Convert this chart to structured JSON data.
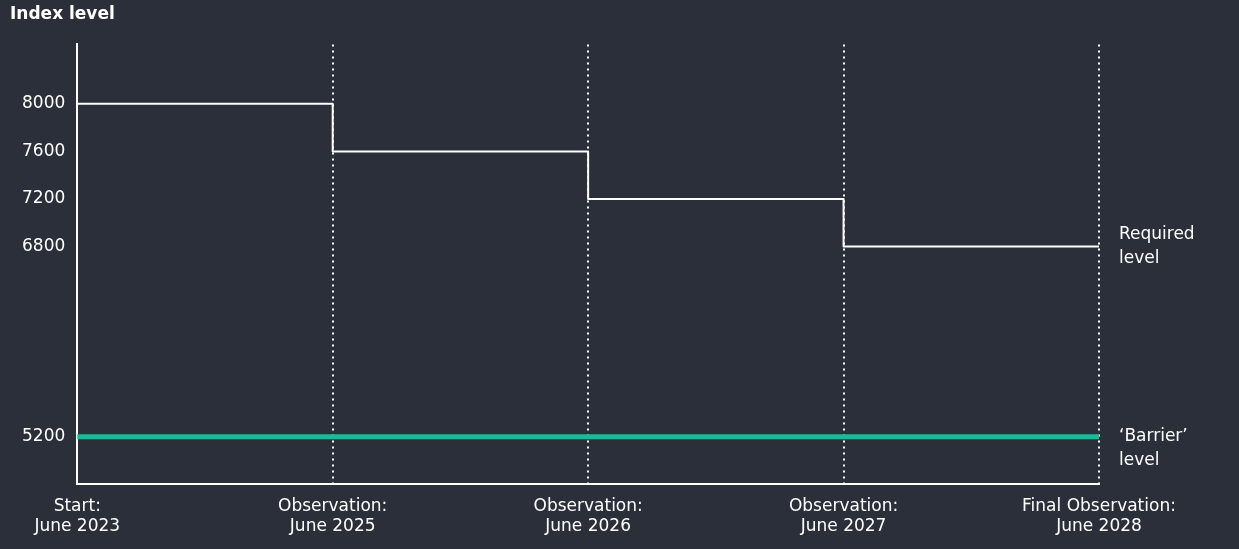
{
  "chart_data": {
    "type": "step",
    "ylabel": "Index level",
    "categories": [
      "Start: June 2023",
      "Observation: June 2025",
      "Observation: June 2026",
      "Observation: June 2027",
      "Final Observation: June 2028"
    ],
    "series": [
      {
        "name": "Required level",
        "color": "#ffffff",
        "values": [
          8000,
          7600,
          7200,
          6800,
          6800
        ]
      }
    ],
    "ylim": [
      4800,
      8500
    ],
    "yticks": [
      5200,
      6800,
      7200,
      7600,
      8000
    ],
    "ref_lines": [
      {
        "axis": "y",
        "value": 5200,
        "label": "‘Barrier’ level",
        "color": "#1fb89a"
      }
    ],
    "grid": "x"
  }
}
